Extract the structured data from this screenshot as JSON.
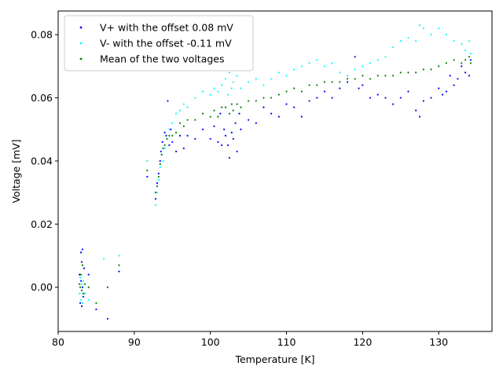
{
  "chart_data": {
    "type": "scatter",
    "title": "",
    "xlabel": "Temperature [K]",
    "ylabel": "Voltage [mV]",
    "xlim": [
      80,
      137
    ],
    "ylim": [
      -0.014,
      0.0875
    ],
    "xticks": [
      80,
      90,
      100,
      110,
      120,
      130
    ],
    "yticks": [
      0.0,
      0.02,
      0.04,
      0.06,
      0.08
    ],
    "ytick_labels": [
      "0.00",
      "0.02",
      "0.04",
      "0.06",
      "0.08"
    ],
    "grid": false,
    "legend_position": "top-left",
    "series": [
      {
        "name": "V+ with the offset 0.08 mV",
        "color": "#0000ff",
        "points": [
          [
            82.8,
            0.004
          ],
          [
            82.9,
            -0.005
          ],
          [
            83.0,
            0.011
          ],
          [
            83.0,
            0.002
          ],
          [
            83.1,
            -0.006
          ],
          [
            83.1,
            0.008
          ],
          [
            83.2,
            0.012
          ],
          [
            83.2,
            0.0
          ],
          [
            83.3,
            -0.003
          ],
          [
            83.4,
            0.006
          ],
          [
            83.5,
            -0.002
          ],
          [
            84.0,
            0.004
          ],
          [
            85.0,
            -0.007
          ],
          [
            86.5,
            -0.01
          ],
          [
            88.0,
            0.005
          ],
          [
            91.7,
            0.035
          ],
          [
            92.8,
            0.028
          ],
          [
            93.0,
            0.033
          ],
          [
            93.2,
            0.036
          ],
          [
            93.4,
            0.04
          ],
          [
            93.5,
            0.043
          ],
          [
            93.7,
            0.046
          ],
          [
            94.0,
            0.049
          ],
          [
            94.2,
            0.048
          ],
          [
            94.4,
            0.059
          ],
          [
            94.6,
            0.045
          ],
          [
            94.8,
            0.05
          ],
          [
            95.0,
            0.046
          ],
          [
            95.5,
            0.043
          ],
          [
            96.0,
            0.048
          ],
          [
            96.5,
            0.044
          ],
          [
            97.0,
            0.048
          ],
          [
            98.0,
            0.047
          ],
          [
            99.0,
            0.05
          ],
          [
            100.0,
            0.047
          ],
          [
            100.5,
            0.051
          ],
          [
            101.0,
            0.046
          ],
          [
            101.3,
            0.055
          ],
          [
            101.5,
            0.045
          ],
          [
            101.8,
            0.05
          ],
          [
            102.0,
            0.048
          ],
          [
            102.3,
            0.045
          ],
          [
            102.5,
            0.041
          ],
          [
            102.8,
            0.049
          ],
          [
            103.0,
            0.047
          ],
          [
            103.3,
            0.052
          ],
          [
            103.5,
            0.043
          ],
          [
            103.8,
            0.055
          ],
          [
            104.0,
            0.05
          ],
          [
            105.0,
            0.053
          ],
          [
            106.0,
            0.052
          ],
          [
            107.0,
            0.057
          ],
          [
            108.0,
            0.055
          ],
          [
            109.0,
            0.054
          ],
          [
            110.0,
            0.058
          ],
          [
            111.0,
            0.057
          ],
          [
            112.0,
            0.054
          ],
          [
            113.0,
            0.059
          ],
          [
            114.0,
            0.06
          ],
          [
            115.0,
            0.062
          ],
          [
            116.0,
            0.06
          ],
          [
            117.0,
            0.063
          ],
          [
            118.0,
            0.065
          ],
          [
            119.0,
            0.073
          ],
          [
            119.5,
            0.063
          ],
          [
            120.0,
            0.064
          ],
          [
            121.0,
            0.06
          ],
          [
            122.0,
            0.061
          ],
          [
            123.0,
            0.06
          ],
          [
            124.0,
            0.058
          ],
          [
            125.0,
            0.06
          ],
          [
            126.0,
            0.062
          ],
          [
            127.0,
            0.056
          ],
          [
            127.5,
            0.054
          ],
          [
            128.0,
            0.059
          ],
          [
            129.0,
            0.06
          ],
          [
            130.0,
            0.063
          ],
          [
            130.5,
            0.061
          ],
          [
            131.0,
            0.062
          ],
          [
            131.5,
            0.067
          ],
          [
            132.0,
            0.064
          ],
          [
            132.5,
            0.066
          ],
          [
            133.0,
            0.07
          ],
          [
            133.5,
            0.068
          ],
          [
            134.0,
            0.067
          ],
          [
            134.2,
            0.072
          ]
        ]
      },
      {
        "name": "V- with the offset -0.11 mV",
        "color": "#00ffff",
        "points": [
          [
            82.8,
            -0.002
          ],
          [
            82.9,
            0.003
          ],
          [
            83.0,
            -0.004
          ],
          [
            83.1,
            0.001
          ],
          [
            83.2,
            -0.005
          ],
          [
            83.3,
            0.002
          ],
          [
            83.5,
            -0.002
          ],
          [
            84.0,
            -0.004
          ],
          [
            86.0,
            0.009
          ],
          [
            88.0,
            0.01
          ],
          [
            91.7,
            0.04
          ],
          [
            92.8,
            0.026
          ],
          [
            93.0,
            0.03
          ],
          [
            93.2,
            0.034
          ],
          [
            93.4,
            0.038
          ],
          [
            93.6,
            0.042
          ],
          [
            93.8,
            0.04
          ],
          [
            94.0,
            0.044
          ],
          [
            94.3,
            0.047
          ],
          [
            94.6,
            0.05
          ],
          [
            95.0,
            0.052
          ],
          [
            95.5,
            0.055
          ],
          [
            96.0,
            0.056
          ],
          [
            96.5,
            0.058
          ],
          [
            97.0,
            0.057
          ],
          [
            98.0,
            0.06
          ],
          [
            99.0,
            0.062
          ],
          [
            100.0,
            0.061
          ],
          [
            100.5,
            0.063
          ],
          [
            101.0,
            0.062
          ],
          [
            101.5,
            0.064
          ],
          [
            102.0,
            0.066
          ],
          [
            102.3,
            0.061
          ],
          [
            102.5,
            0.068
          ],
          [
            102.8,
            0.063
          ],
          [
            103.0,
            0.065
          ],
          [
            103.5,
            0.067
          ],
          [
            104.0,
            0.063
          ],
          [
            105.0,
            0.065
          ],
          [
            106.0,
            0.066
          ],
          [
            107.0,
            0.064
          ],
          [
            108.0,
            0.066
          ],
          [
            109.0,
            0.068
          ],
          [
            110.0,
            0.067
          ],
          [
            111.0,
            0.069
          ],
          [
            112.0,
            0.07
          ],
          [
            113.0,
            0.071
          ],
          [
            114.0,
            0.072
          ],
          [
            115.0,
            0.07
          ],
          [
            116.0,
            0.071
          ],
          [
            117.0,
            0.068
          ],
          [
            118.0,
            0.067
          ],
          [
            119.0,
            0.069
          ],
          [
            120.0,
            0.07
          ],
          [
            121.0,
            0.071
          ],
          [
            122.0,
            0.072
          ],
          [
            123.0,
            0.073
          ],
          [
            124.0,
            0.076
          ],
          [
            125.0,
            0.078
          ],
          [
            126.0,
            0.079
          ],
          [
            127.0,
            0.078
          ],
          [
            127.5,
            0.083
          ],
          [
            128.0,
            0.082
          ],
          [
            129.0,
            0.08
          ],
          [
            130.0,
            0.082
          ],
          [
            131.0,
            0.08
          ],
          [
            132.0,
            0.078
          ],
          [
            133.0,
            0.077
          ],
          [
            133.5,
            0.075
          ],
          [
            134.0,
            0.078
          ],
          [
            134.2,
            0.074
          ]
        ]
      },
      {
        "name": "Mean of the two voltages",
        "color": "#008000",
        "points": [
          [
            82.8,
            0.001
          ],
          [
            82.9,
            0.0
          ],
          [
            83.0,
            0.004
          ],
          [
            83.1,
            -0.001
          ],
          [
            83.2,
            0.007
          ],
          [
            83.3,
            -0.002
          ],
          [
            83.5,
            0.001
          ],
          [
            84.0,
            0.0
          ],
          [
            85.0,
            -0.005
          ],
          [
            86.5,
            0.0
          ],
          [
            88.0,
            0.007
          ],
          [
            91.7,
            0.037
          ],
          [
            92.8,
            0.03
          ],
          [
            93.0,
            0.032
          ],
          [
            93.2,
            0.035
          ],
          [
            93.4,
            0.039
          ],
          [
            93.6,
            0.042
          ],
          [
            93.8,
            0.044
          ],
          [
            94.0,
            0.045
          ],
          [
            94.3,
            0.047
          ],
          [
            94.6,
            0.048
          ],
          [
            95.0,
            0.048
          ],
          [
            95.5,
            0.049
          ],
          [
            96.0,
            0.052
          ],
          [
            96.5,
            0.051
          ],
          [
            97.0,
            0.053
          ],
          [
            98.0,
            0.053
          ],
          [
            99.0,
            0.055
          ],
          [
            100.0,
            0.054
          ],
          [
            100.5,
            0.056
          ],
          [
            101.0,
            0.054
          ],
          [
            101.5,
            0.057
          ],
          [
            102.0,
            0.057
          ],
          [
            102.5,
            0.055
          ],
          [
            102.8,
            0.058
          ],
          [
            103.0,
            0.056
          ],
          [
            103.5,
            0.058
          ],
          [
            104.0,
            0.057
          ],
          [
            105.0,
            0.059
          ],
          [
            106.0,
            0.059
          ],
          [
            107.0,
            0.06
          ],
          [
            108.0,
            0.06
          ],
          [
            109.0,
            0.061
          ],
          [
            110.0,
            0.062
          ],
          [
            111.0,
            0.063
          ],
          [
            112.0,
            0.062
          ],
          [
            113.0,
            0.064
          ],
          [
            114.0,
            0.064
          ],
          [
            115.0,
            0.065
          ],
          [
            116.0,
            0.065
          ],
          [
            117.0,
            0.065
          ],
          [
            118.0,
            0.066
          ],
          [
            119.0,
            0.066
          ],
          [
            120.0,
            0.067
          ],
          [
            121.0,
            0.066
          ],
          [
            122.0,
            0.067
          ],
          [
            123.0,
            0.067
          ],
          [
            124.0,
            0.067
          ],
          [
            125.0,
            0.068
          ],
          [
            126.0,
            0.068
          ],
          [
            127.0,
            0.068
          ],
          [
            128.0,
            0.069
          ],
          [
            129.0,
            0.069
          ],
          [
            130.0,
            0.07
          ],
          [
            131.0,
            0.071
          ],
          [
            132.0,
            0.072
          ],
          [
            133.0,
            0.071
          ],
          [
            133.5,
            0.072
          ],
          [
            134.0,
            0.073
          ],
          [
            134.2,
            0.071
          ]
        ]
      }
    ]
  }
}
